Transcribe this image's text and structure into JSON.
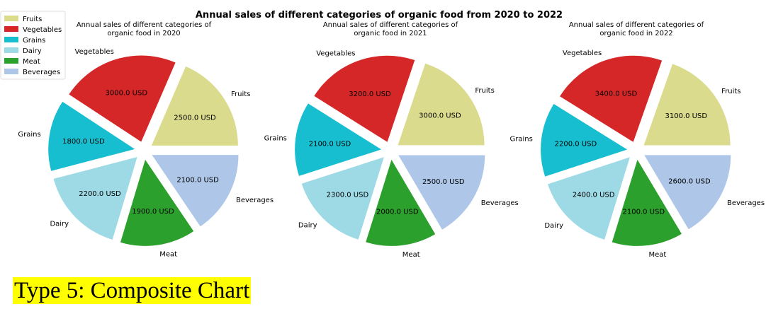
{
  "figure": {
    "title": "Annual sales of different categories of organic food from 2020 to 2022",
    "caption": "Type 5: Composite Chart"
  },
  "colors": {
    "Fruits": "#dbdb8d",
    "Vegetables": "#d62728",
    "Grains": "#17becf",
    "Dairy": "#9edae5",
    "Meat": "#2ca02c",
    "Beverages": "#aec7e8"
  },
  "chart_data": [
    {
      "type": "pie",
      "title": "Annual sales of different categories of organic food in 2020",
      "labels": [
        "Fruits",
        "Vegetables",
        "Grains",
        "Dairy",
        "Meat",
        "Beverages"
      ],
      "values": [
        2500,
        3000,
        1800,
        2200,
        1900,
        2100
      ],
      "value_labels": [
        "2500.0 USD",
        "3000.0 USD",
        "1800.0 USD",
        "2200.0 USD",
        "1900.0 USD",
        "2100.0 USD"
      ],
      "explode": true,
      "legend": "upper-left"
    },
    {
      "type": "pie",
      "title": "Annual sales of different categories of organic food in 2021",
      "labels": [
        "Fruits",
        "Vegetables",
        "Grains",
        "Dairy",
        "Meat",
        "Beverages"
      ],
      "values": [
        3000,
        3200,
        2100,
        2300,
        2000,
        2500
      ],
      "value_labels": [
        "3000.0 USD",
        "3200.0 USD",
        "2100.0 USD",
        "2300.0 USD",
        "2000.0 USD",
        "2500.0 USD"
      ],
      "explode": true
    },
    {
      "type": "pie",
      "title": "Annual sales of different categories of organic food in 2022",
      "labels": [
        "Fruits",
        "Vegetables",
        "Grains",
        "Dairy",
        "Meat",
        "Beverages"
      ],
      "values": [
        3100,
        3400,
        2200,
        2400,
        2100,
        2600
      ],
      "value_labels": [
        "3100.0 USD",
        "3400.0 USD",
        "2200.0 USD",
        "2400.0 USD",
        "2100.0 USD",
        "2600.0 USD"
      ],
      "explode": true
    }
  ]
}
